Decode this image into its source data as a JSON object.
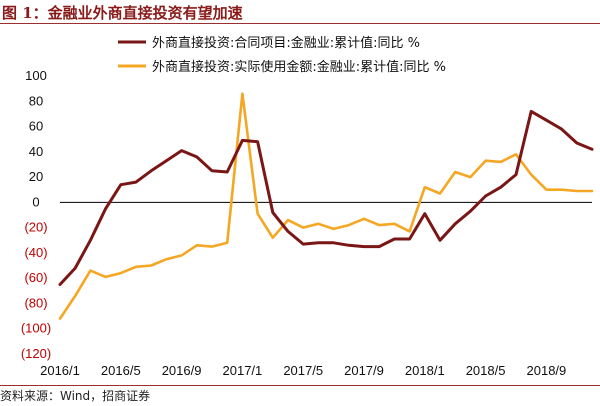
{
  "caption": {
    "text": "图 1：金融业外商直接投资有望加速"
  },
  "source": {
    "text": "资料来源：Wind，招商证券"
  },
  "colors": {
    "series1": "#7b1616",
    "series2": "#f5a623",
    "negative_tick": "#c00000",
    "caption": "#8b1a1a"
  },
  "chart_data": {
    "type": "line",
    "title": "",
    "xlabel": "",
    "ylabel": "",
    "ylim": [
      -120,
      100
    ],
    "yticks": [
      100,
      80,
      60,
      40,
      20,
      0,
      -20,
      -40,
      -60,
      -80,
      -100,
      -120
    ],
    "ytick_labels": [
      "100",
      "80",
      "60",
      "40",
      "20",
      "0",
      "(20)",
      "(40)",
      "(60)",
      "(80)",
      "(100)",
      "(120)"
    ],
    "xtick_labels": [
      "2016/1",
      "2016/5",
      "2016/9",
      "2017/1",
      "2017/5",
      "2017/9",
      "2018/1",
      "2018/5",
      "2018/9"
    ],
    "x": [
      "2016/1",
      "2016/2",
      "2016/3",
      "2016/4",
      "2016/5",
      "2016/6",
      "2016/7",
      "2016/8",
      "2016/9",
      "2016/10",
      "2016/11",
      "2016/12",
      "2017/1",
      "2017/2",
      "2017/3",
      "2017/4",
      "2017/5",
      "2017/6",
      "2017/7",
      "2017/8",
      "2017/9",
      "2017/10",
      "2017/11",
      "2017/12",
      "2018/1",
      "2018/2",
      "2018/3",
      "2018/4",
      "2018/5",
      "2018/6",
      "2018/7",
      "2018/8",
      "2018/9",
      "2018/10",
      "2018/11",
      "2018/12"
    ],
    "grid": false,
    "legend": "top-left",
    "series": [
      {
        "name": "外商直接投资:合同项目:金融业:累计值:同比 %",
        "values": [
          -65,
          -52,
          -30,
          -5,
          14,
          16,
          25,
          33,
          41,
          36,
          25,
          24,
          49,
          48,
          -8,
          -23,
          -33,
          -32,
          -32,
          -34,
          -35,
          -35,
          -29,
          -29,
          -9,
          -30,
          -17,
          -7,
          5,
          12,
          22,
          72,
          65,
          58,
          47,
          42
        ]
      },
      {
        "name": "外商直接投资:实际使用金额:金融业:累计值:同比 %",
        "values": [
          -92,
          -74,
          -54,
          -59,
          -56,
          -51,
          -50,
          -45,
          -42,
          -34,
          -35,
          -32,
          86,
          -9,
          -28,
          -14,
          -20,
          -17,
          -21,
          -18,
          -13,
          -18,
          -17,
          -23,
          12,
          7,
          24,
          20,
          33,
          32,
          38,
          22,
          10,
          10,
          9,
          9
        ]
      }
    ]
  }
}
